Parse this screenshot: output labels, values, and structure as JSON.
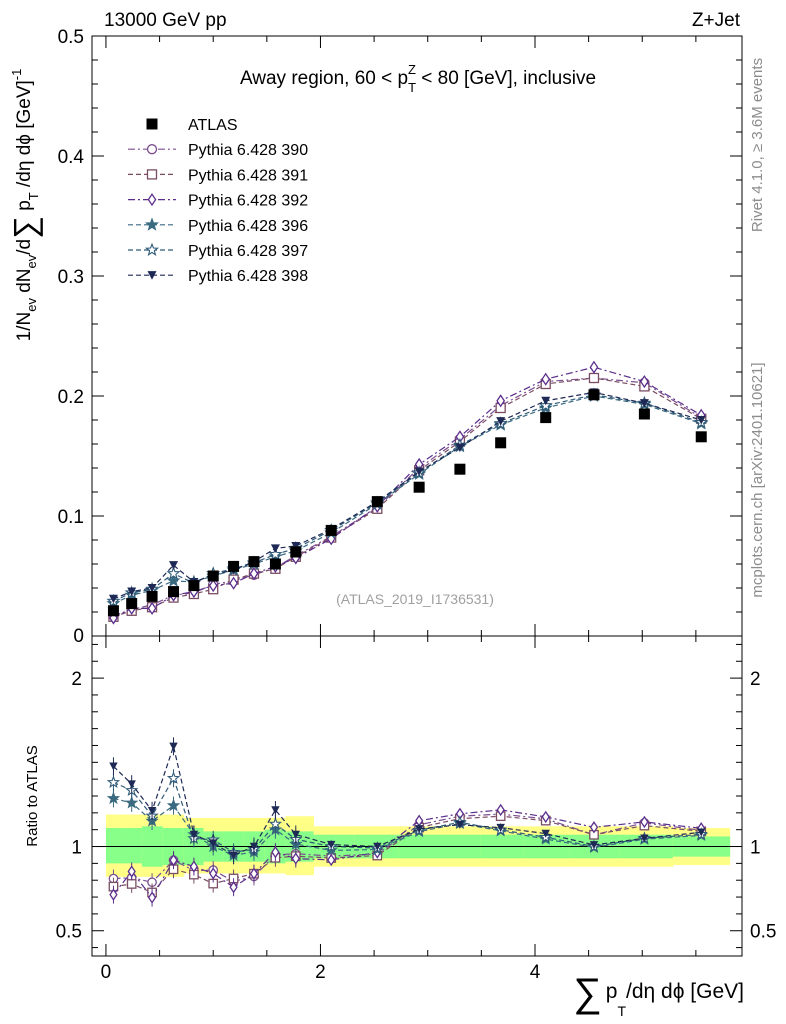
{
  "header": {
    "left": "13000 GeV pp",
    "right": "Z+Jet"
  },
  "side": {
    "rivet": "Rivet 4.1.0, ≥ 3.6M events",
    "mcplots": "mcplots.cern.ch [arXiv:2401.10621]"
  },
  "chart_data": {
    "type": "line",
    "title": "Away region, 60 < p_T^Z < 80 [GeV], inclusive",
    "title_parts": {
      "pre": "Away region, 60 < p",
      "sup": "Z",
      "sub": "T",
      "post": " < 80 [GeV], inclusive"
    },
    "analysis_label": "(ATLAS_2019_I1736531)",
    "xlabel": "∑ p_T/dη dϕ [GeV]",
    "xlabel_parts": {
      "sigma": "∑",
      "p": "p",
      "sub": "T",
      "rest": "/dη dϕ [GeV]"
    },
    "ylabel": "1/N_ev dN_ev/d∑ p_T/dη dϕ [GeV]^-1",
    "ylabel_parts": {
      "a": "1/N",
      "ev1": "ev",
      "b": " dN",
      "ev2": "ev",
      "c": "/d",
      "sigma": "∑",
      "d": " p",
      "t": "T",
      "e": " /dη dϕ  [GeV]",
      "sup": "-1"
    },
    "ratio_ylabel": "Ratio to ATLAS",
    "xlim": [
      -0.13,
      5.93
    ],
    "ylim": [
      0,
      0.5
    ],
    "ratio_ylim": [
      0.35,
      2.25
    ],
    "x_ticks": [
      "0",
      "2",
      "4"
    ],
    "y_ticks": [
      "0.1",
      "0.2",
      "0.3",
      "0.4",
      "0.5"
    ],
    "y_zero_label": "0",
    "ratio_ticks": [
      "0.5",
      "1",
      "2"
    ],
    "x": [
      0.07,
      0.24,
      0.43,
      0.63,
      0.82,
      1.0,
      1.19,
      1.38,
      1.58,
      1.77,
      2.1,
      2.53,
      2.92,
      3.3,
      3.68,
      4.1,
      4.55,
      5.02,
      5.55
    ],
    "legend_position": "top-left",
    "series": [
      {
        "name": "ATLAS",
        "marker": "filled-square",
        "color": "#000000",
        "line": "none",
        "values": [
          0.021,
          0.027,
          0.033,
          0.037,
          0.042,
          0.05,
          0.058,
          0.062,
          0.06,
          0.07,
          0.088,
          0.112,
          0.124,
          0.139,
          0.161,
          0.182,
          0.201,
          0.185,
          0.166
        ]
      },
      {
        "name": "Pythia 6.428 390",
        "marker": "open-circle",
        "color": "#7b4f8f",
        "line": "dash-dot",
        "values": [
          0.017,
          0.022,
          0.026,
          0.034,
          0.036,
          0.043,
          0.046,
          0.051,
          0.057,
          0.067,
          0.083,
          0.107,
          0.14,
          0.164,
          0.192,
          0.212,
          0.215,
          0.211,
          0.182
        ]
      },
      {
        "name": "Pythia 6.428 391",
        "marker": "open-square",
        "color": "#7a4d63",
        "line": "dash",
        "values": [
          0.016,
          0.021,
          0.024,
          0.032,
          0.035,
          0.039,
          0.047,
          0.052,
          0.056,
          0.066,
          0.082,
          0.106,
          0.138,
          0.162,
          0.19,
          0.21,
          0.215,
          0.208,
          0.181
        ]
      },
      {
        "name": "Pythia 6.428 392",
        "marker": "open-diamond",
        "color": "#5b2e8c",
        "line": "dash-dot",
        "values": [
          0.015,
          0.023,
          0.023,
          0.034,
          0.037,
          0.042,
          0.044,
          0.052,
          0.058,
          0.065,
          0.081,
          0.108,
          0.143,
          0.166,
          0.196,
          0.214,
          0.224,
          0.212,
          0.184
        ]
      },
      {
        "name": "Pythia 6.428 396",
        "marker": "filled-star",
        "color": "#3a6a80",
        "line": "dash",
        "values": [
          0.027,
          0.034,
          0.038,
          0.046,
          0.045,
          0.05,
          0.055,
          0.06,
          0.066,
          0.071,
          0.086,
          0.11,
          0.135,
          0.158,
          0.176,
          0.19,
          0.2,
          0.193,
          0.177
        ]
      },
      {
        "name": "Pythia 6.428 397",
        "marker": "open-star",
        "color": "#2f5a78",
        "line": "dash",
        "values": [
          0.029,
          0.036,
          0.039,
          0.052,
          0.044,
          0.052,
          0.056,
          0.061,
          0.068,
          0.073,
          0.088,
          0.111,
          0.136,
          0.159,
          0.177,
          0.192,
          0.201,
          0.194,
          0.178
        ]
      },
      {
        "name": "Pythia 6.428 398",
        "marker": "filled-triangle-down",
        "color": "#1e2a55",
        "line": "dash",
        "values": [
          0.031,
          0.037,
          0.04,
          0.059,
          0.045,
          0.051,
          0.055,
          0.062,
          0.073,
          0.075,
          0.089,
          0.112,
          0.137,
          0.157,
          0.179,
          0.196,
          0.203,
          0.194,
          0.18
        ]
      }
    ],
    "ratio_bands": {
      "inner_green": [
        0.9,
        0.9,
        0.88,
        0.89,
        0.89,
        0.91,
        0.91,
        0.91,
        0.9,
        0.91,
        0.93,
        0.93,
        0.93,
        0.93,
        0.93,
        0.93,
        0.93,
        0.93,
        0.94
      ],
      "inner_green_hi": [
        1.11,
        1.11,
        1.12,
        1.11,
        1.11,
        1.09,
        1.09,
        1.09,
        1.1,
        1.09,
        1.07,
        1.07,
        1.07,
        1.07,
        1.07,
        1.07,
        1.07,
        1.07,
        1.06
      ],
      "outer_yellow_lo": [
        0.82,
        0.82,
        0.82,
        0.82,
        0.84,
        0.84,
        0.84,
        0.84,
        0.84,
        0.83,
        0.88,
        0.88,
        0.88,
        0.88,
        0.88,
        0.88,
        0.88,
        0.88,
        0.89
      ],
      "outer_yellow_hi": [
        1.19,
        1.19,
        1.19,
        1.19,
        1.17,
        1.17,
        1.17,
        1.17,
        1.17,
        1.18,
        1.12,
        1.12,
        1.12,
        1.12,
        1.12,
        1.12,
        1.12,
        1.12,
        1.11
      ]
    }
  }
}
